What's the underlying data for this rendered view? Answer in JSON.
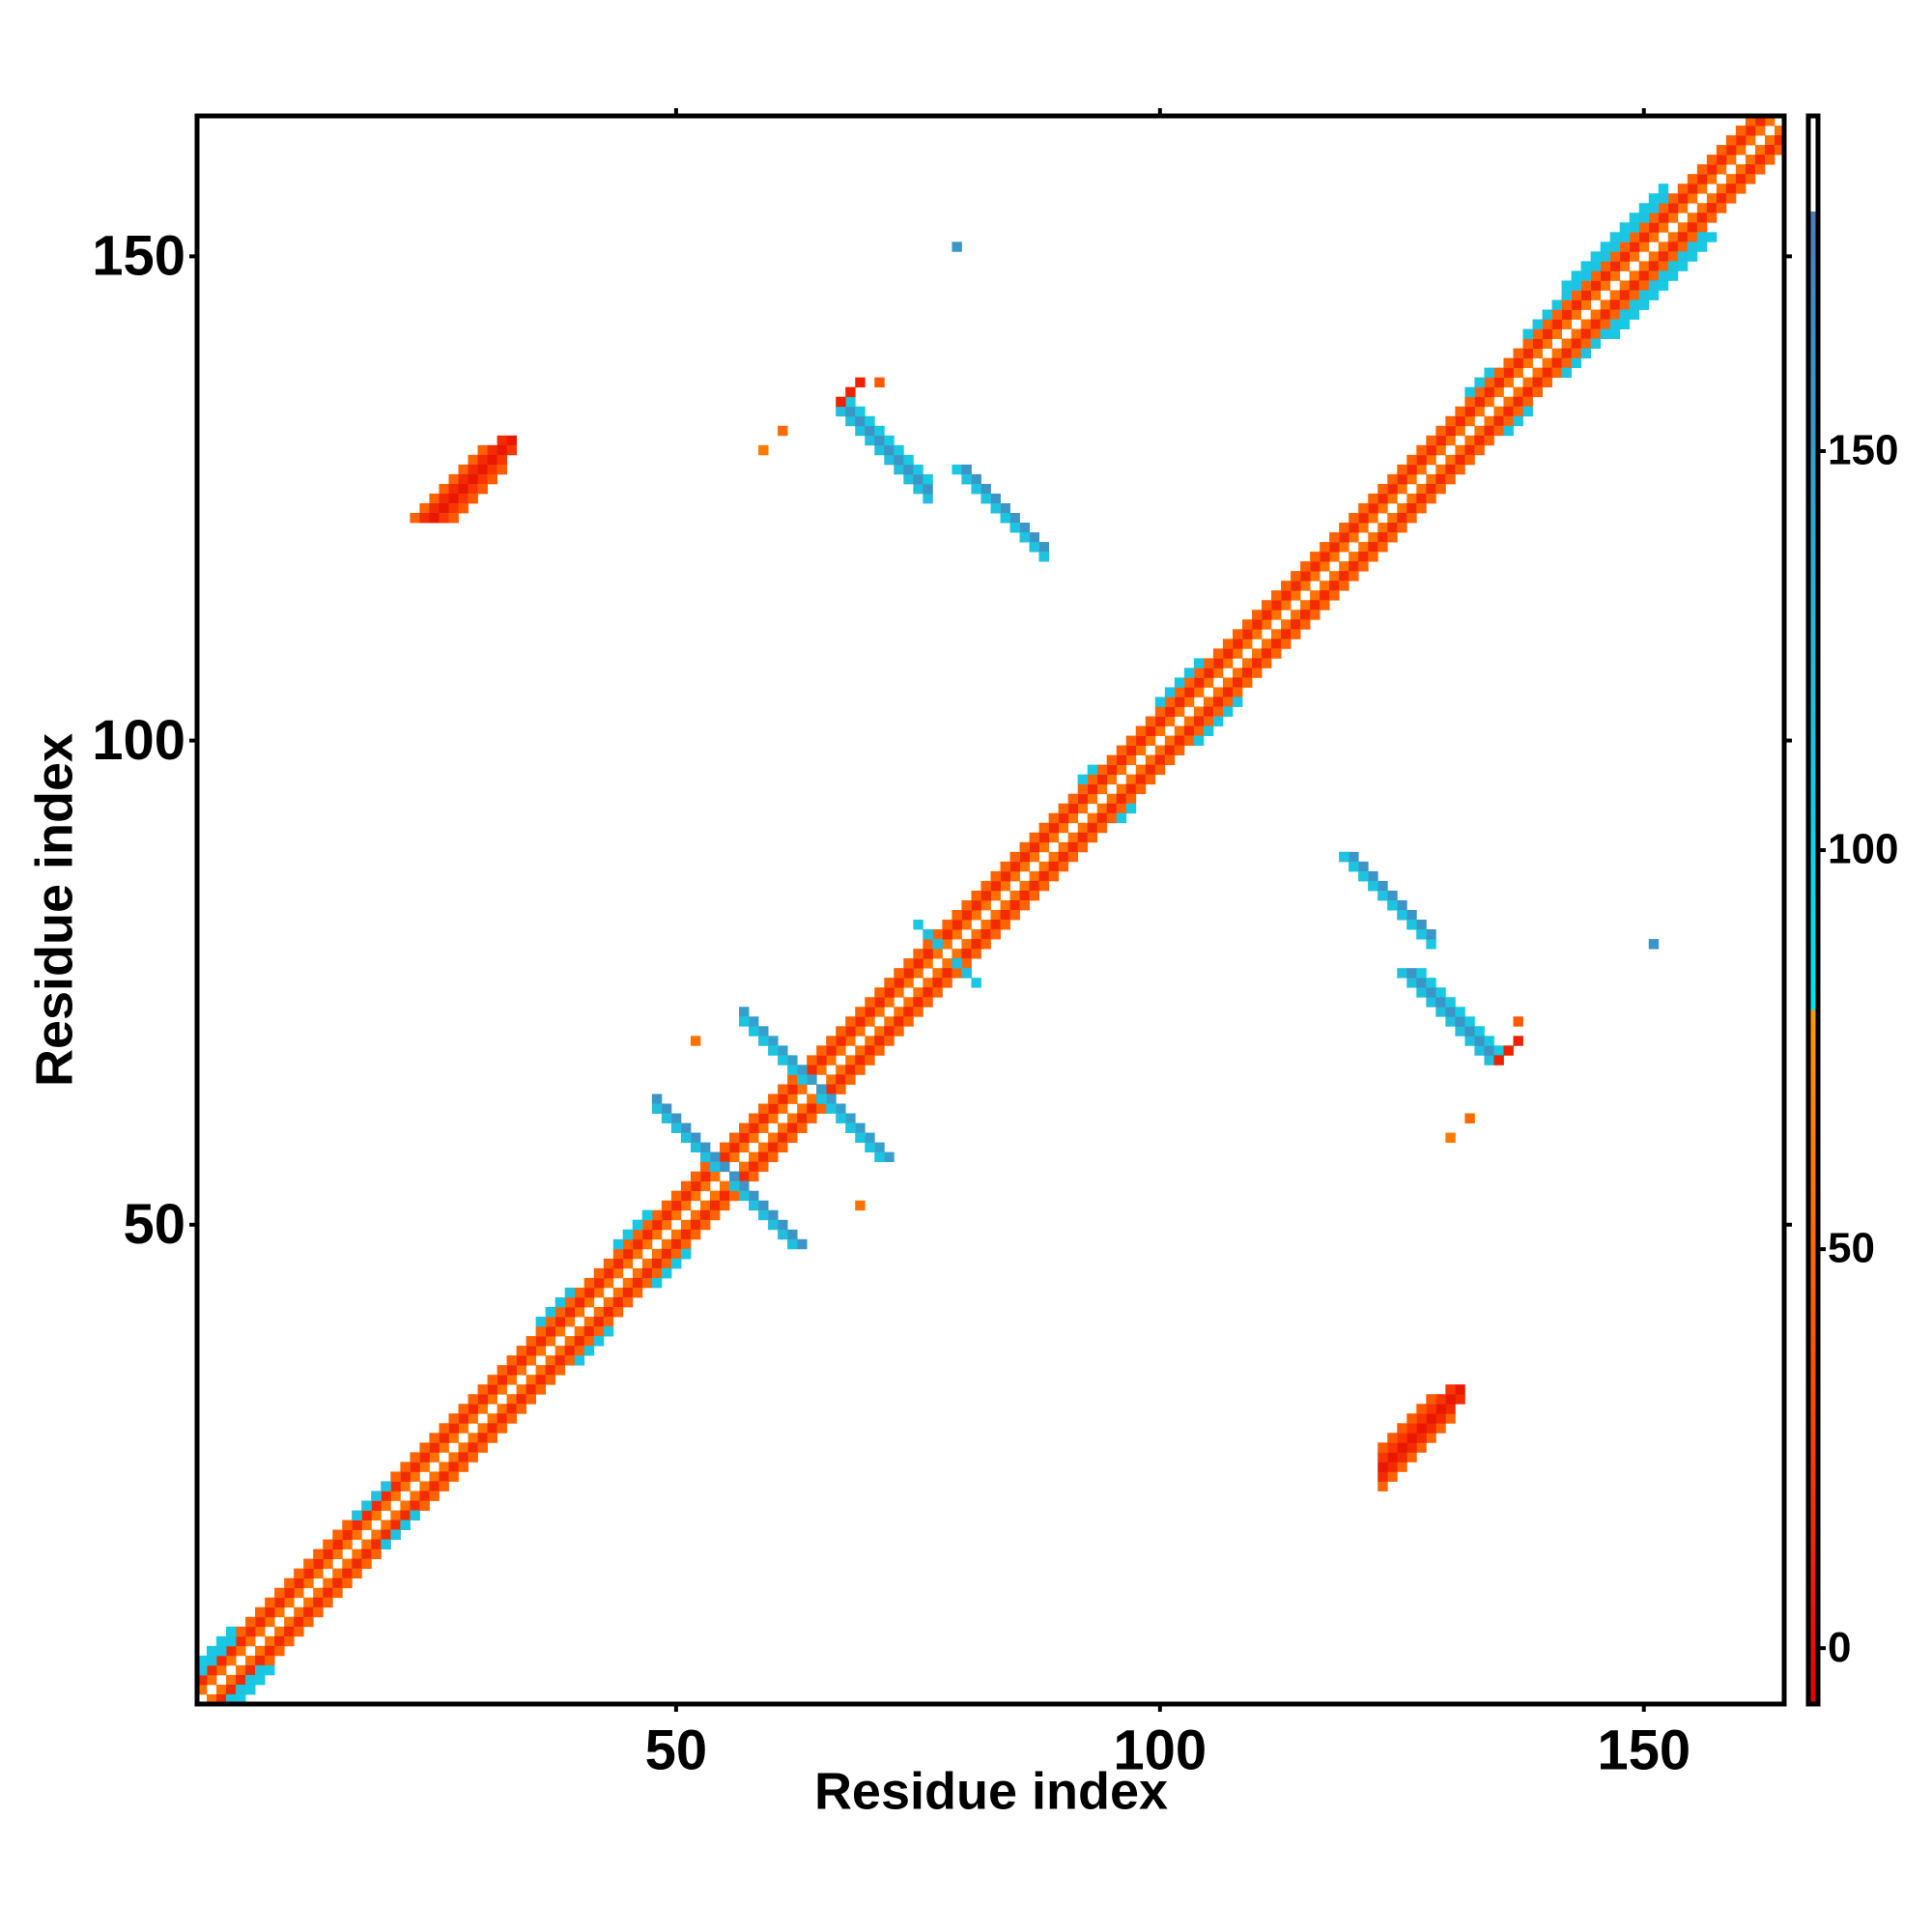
{
  "chart_data": {
    "type": "heatmap",
    "xlabel": "Residue index",
    "ylabel": "Residue index",
    "xlim": [
      0.5,
      164.5
    ],
    "ylim": [
      0.5,
      164.5
    ],
    "xticks": [
      50,
      100,
      150
    ],
    "yticks": [
      50,
      100,
      150
    ],
    "symmetric": true,
    "clim": [
      -7,
      192
    ],
    "cticks": [
      0,
      50,
      100,
      150
    ],
    "color_scale": [
      {
        "value": -7,
        "color": "#e00000"
      },
      {
        "value": 30,
        "color": "#ff4a00"
      },
      {
        "value": 80,
        "color": "#ff9a00"
      },
      {
        "value": 80,
        "color": "#00e5ee"
      },
      {
        "value": 130,
        "color": "#2ab4da"
      },
      {
        "value": 180,
        "color": "#4a7fb8"
      },
      {
        "value": 180,
        "color": "#ffffff"
      },
      {
        "value": 192,
        "color": "#ffffff"
      }
    ],
    "runs": [
      [
        1,
        2,
        163,
        1,
        55
      ],
      [
        1,
        3,
        162,
        1,
        15
      ],
      [
        1,
        4,
        161,
        1,
        45
      ],
      [
        1,
        4,
        4,
        1,
        115
      ],
      [
        1,
        5,
        4,
        1,
        110
      ],
      [
        17,
        20,
        4,
        1,
        115
      ],
      [
        36,
        40,
        4,
        1,
        115
      ],
      [
        44,
        48,
        4,
        1,
        115
      ],
      [
        45,
        49,
        3,
        1,
        110
      ],
      [
        92,
        96,
        2,
        1,
        110
      ],
      [
        100,
        104,
        5,
        1,
        115
      ],
      [
        132,
        136,
        3,
        1,
        115
      ],
      [
        138,
        142,
        3,
        1,
        115
      ],
      [
        141,
        145,
        12,
        1,
        115
      ],
      [
        142,
        147,
        11,
        1,
        110
      ],
      [
        23,
        123,
        8,
        1,
        45
      ],
      [
        24,
        123,
        9,
        1,
        15
      ],
      [
        25,
        123,
        9,
        1,
        5
      ],
      [
        26,
        123,
        8,
        1,
        20
      ],
      [
        27,
        123,
        6,
        1,
        40
      ],
      [
        67,
        134,
        10,
        -1,
        120
      ],
      [
        68,
        134,
        9,
        -1,
        160
      ],
      [
        68,
        135,
        9,
        -1,
        110
      ],
      [
        67,
        135,
        3,
        1,
        10
      ],
      [
        71,
        137,
        1,
        1,
        40
      ],
      [
        79,
        128,
        10,
        -1,
        110
      ],
      [
        80,
        128,
        9,
        -1,
        160
      ],
      [
        80,
        127,
        9,
        -1,
        115
      ],
      [
        59,
        130,
        1,
        1,
        60
      ],
      [
        61,
        132,
        1,
        1,
        50
      ],
      [
        79,
        151,
        1,
        1,
        160
      ],
      [
        48,
        63,
        8,
        -1,
        160
      ],
      [
        48,
        62,
        7,
        -1,
        120
      ],
      [
        57,
        72,
        8,
        -1,
        150
      ],
      [
        57,
        71,
        7,
        -1,
        115
      ],
      [
        75,
        81,
        3,
        -1,
        110
      ],
      [
        76,
        80,
        2,
        -1,
        120
      ],
      [
        52,
        69,
        1,
        1,
        55
      ]
    ]
  }
}
